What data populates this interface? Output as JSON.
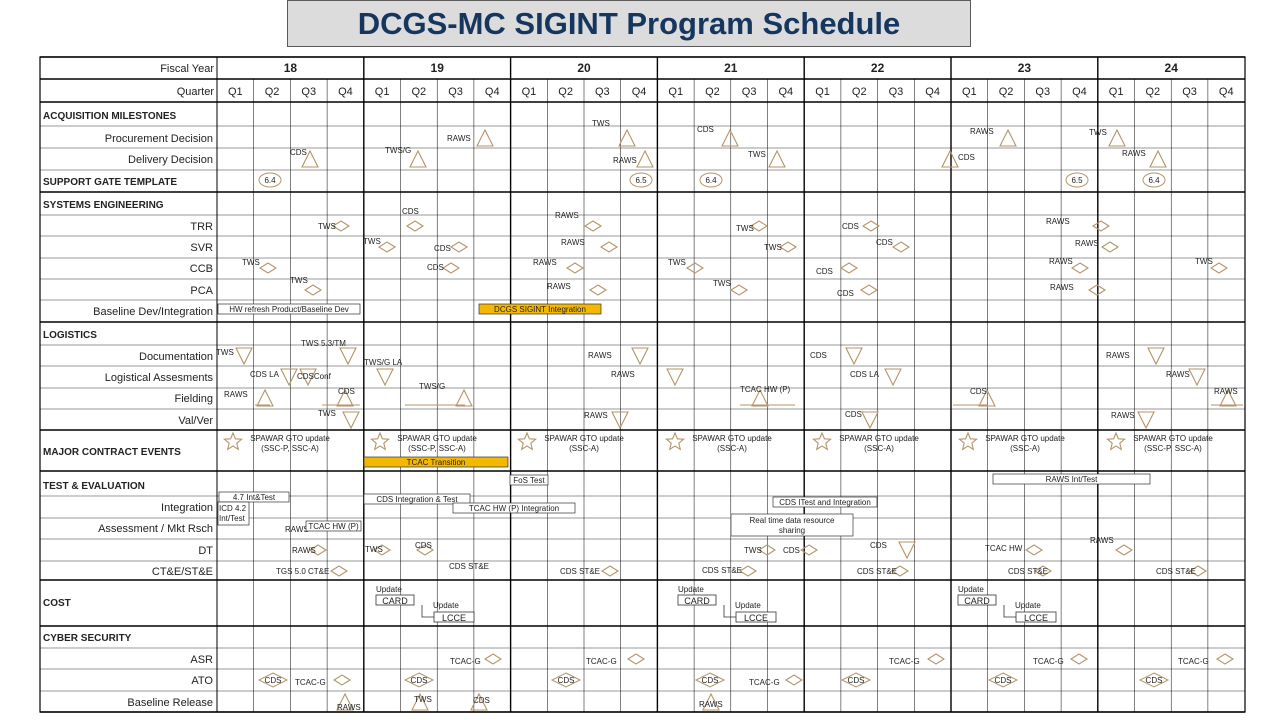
{
  "title": "DCGS-MC SIGINT Program Schedule",
  "colors": {
    "title_bg": "#dcdcdc",
    "title_text": "#14365f",
    "milestone": "#b49469",
    "bar_fill": "#f5b800",
    "grid": "#000000"
  },
  "header": {
    "fiscal_year_label": "Fiscal Year",
    "quarter_label": "Quarter"
  },
  "years": [
    "18",
    "19",
    "20",
    "21",
    "22",
    "23",
    "24"
  ],
  "quarters": [
    "Q1",
    "Q2",
    "Q3",
    "Q4"
  ],
  "sections": [
    {
      "title": "ACQUISITION MILESTONES",
      "rows": [
        "Procurement Decision",
        "Delivery Decision"
      ]
    },
    {
      "title": "SUPPORT GATE TEMPLATE",
      "rows": []
    },
    {
      "title": "SYSTEMS ENGINEERING",
      "rows": [
        "TRR",
        "SVR",
        "CCB",
        "PCA",
        "Baseline Dev/Integration"
      ]
    },
    {
      "title": "LOGISTICS",
      "rows": [
        "Documentation",
        "Logistical Assesments",
        "Fielding",
        "Val/Ver"
      ]
    },
    {
      "title": "MAJOR CONTRACT EVENTS",
      "rows": []
    },
    {
      "title": "TEST & EVALUATION",
      "rows": [
        "Integration",
        "Assessment / Mkt Rsch",
        "DT",
        "CT&E/ST&E"
      ]
    },
    {
      "title": "COST",
      "rows": []
    },
    {
      "title": "CYBER SECURITY",
      "rows": [
        "ASR",
        "ATO",
        "Baseline Release"
      ]
    }
  ],
  "gates": [
    "6.4",
    "6.5",
    "6.4",
    "6.5",
    "6.4"
  ],
  "bars": [
    {
      "label": "HW refresh Product/Baseline Dev",
      "fill": false
    },
    {
      "label": "DCGS SIGINT Integration",
      "fill": true
    },
    {
      "label": "TCAC Transition",
      "fill": true
    },
    {
      "label": "4.7 Int&Test",
      "fill": false
    },
    {
      "label": "CDS Integration & Test",
      "fill": false
    },
    {
      "label": "TCAC HW (P) Integration",
      "fill": false
    },
    {
      "label": "FoS Test",
      "fill": false
    },
    {
      "label": "CDS ITest and Integration",
      "fill": false
    },
    {
      "label": "RAWS Int/Test",
      "fill": false
    },
    {
      "label": "TCAC HW (P)",
      "fill": false
    }
  ],
  "boxes": [
    {
      "lines": [
        "ICD 4.2",
        "Int/Test"
      ]
    },
    {
      "lines": [
        "Real time data resource",
        "sharing"
      ]
    }
  ],
  "contract_events": [
    {
      "lines": [
        "SPAWAR GTO update",
        "(SSC-P, SSC-A)"
      ]
    },
    {
      "lines": [
        "SPAWAR GTO update",
        "(SSC-P, SSC-A)"
      ]
    },
    {
      "lines": [
        "SPAWAR GTO update",
        "(SSC-A)"
      ]
    },
    {
      "lines": [
        "SPAWAR GTO update",
        "(SSC-A)"
      ]
    },
    {
      "lines": [
        "SPAWAR GTO update",
        "(SSC-A)"
      ]
    },
    {
      "lines": [
        "SPAWAR GTO update",
        "(SSC-A)"
      ]
    },
    {
      "lines": [
        "SPAWAR GTO update",
        "(SSC-P, SSC-A)"
      ]
    }
  ],
  "cost_groups": [
    {
      "update1": "Update",
      "card": "CARD",
      "update2": "Update",
      "lcce": "LCCE"
    },
    {
      "update1": "Update",
      "card": "CARD",
      "update2": "Update",
      "lcce": "LCCE"
    },
    {
      "update1": "Update",
      "card": "CARD",
      "update2": "Update",
      "lcce": "LCCE"
    }
  ],
  "milestones": [
    {
      "row": "Procurement Decision",
      "shape": "triangle-up",
      "label": "RAWS"
    },
    {
      "row": "Procurement Decision",
      "shape": "triangle-up",
      "label": "TWS"
    },
    {
      "row": "Procurement Decision",
      "shape": "triangle-up",
      "label": "CDS"
    },
    {
      "row": "Procurement Decision",
      "shape": "triangle-up",
      "label": "RAWS"
    },
    {
      "row": "Procurement Decision",
      "shape": "triangle-up",
      "label": "TWS"
    },
    {
      "row": "Delivery Decision",
      "shape": "triangle-up",
      "label": "CDS"
    },
    {
      "row": "Delivery Decision",
      "shape": "triangle-up",
      "label": "TWS/G"
    },
    {
      "row": "Delivery Decision",
      "shape": "triangle-up",
      "label": "RAWS"
    },
    {
      "row": "Delivery Decision",
      "shape": "triangle-up",
      "label": "TWS"
    },
    {
      "row": "Delivery Decision",
      "shape": "triangle-up",
      "label": "CDS"
    },
    {
      "row": "Delivery Decision",
      "shape": "triangle-up",
      "label": "RAWS"
    },
    {
      "row": "TRR",
      "shape": "diamond",
      "label": "TWS"
    },
    {
      "row": "TRR",
      "shape": "diamond",
      "label": "CDS"
    },
    {
      "row": "TRR",
      "shape": "diamond",
      "label": "RAWS"
    },
    {
      "row": "TRR",
      "shape": "diamond",
      "label": "TWS"
    },
    {
      "row": "TRR",
      "shape": "diamond",
      "label": "CDS"
    },
    {
      "row": "TRR",
      "shape": "diamond",
      "label": "RAWS"
    },
    {
      "row": "SVR",
      "shape": "diamond",
      "label": "TWS"
    },
    {
      "row": "SVR",
      "shape": "diamond",
      "label": "CDS"
    },
    {
      "row": "SVR",
      "shape": "diamond",
      "label": "RAWS"
    },
    {
      "row": "SVR",
      "shape": "diamond",
      "label": "TWS"
    },
    {
      "row": "SVR",
      "shape": "diamond",
      "label": "CDS"
    },
    {
      "row": "SVR",
      "shape": "diamond",
      "label": "RAWS"
    },
    {
      "row": "CCB",
      "shape": "diamond",
      "label": "TWS"
    },
    {
      "row": "CCB",
      "shape": "diamond",
      "label": "CDS"
    },
    {
      "row": "CCB",
      "shape": "diamond",
      "label": "RAWS"
    },
    {
      "row": "CCB",
      "shape": "diamond",
      "label": "TWS"
    },
    {
      "row": "CCB",
      "shape": "diamond",
      "label": "CDS"
    },
    {
      "row": "CCB",
      "shape": "diamond",
      "label": "RAWS"
    },
    {
      "row": "CCB",
      "shape": "diamond",
      "label": "TWS"
    },
    {
      "row": "PCA",
      "shape": "diamond",
      "label": "TWS"
    },
    {
      "row": "PCA",
      "shape": "diamond",
      "label": "RAWS"
    },
    {
      "row": "PCA",
      "shape": "diamond",
      "label": "TWS"
    },
    {
      "row": "PCA",
      "shape": "diamond",
      "label": "CDS"
    },
    {
      "row": "PCA",
      "shape": "diamond",
      "label": "RAWS"
    },
    {
      "row": "Documentation",
      "shape": "triangle-down",
      "label": "TWS"
    },
    {
      "row": "Documentation",
      "shape": "triangle-down",
      "label": "TWS 5.3/TM"
    },
    {
      "row": "Documentation",
      "shape": "triangle-down",
      "label": "RAWS"
    },
    {
      "row": "Documentation",
      "shape": "triangle-down",
      "label": "CDS"
    },
    {
      "row": "Documentation",
      "shape": "triangle-down",
      "label": "RAWS"
    },
    {
      "row": "Logistical Assesments",
      "shape": "triangle-down",
      "label": "CDS LA"
    },
    {
      "row": "Logistical Assesments",
      "shape": "triangle-down",
      "label": "CDSConf"
    },
    {
      "row": "Logistical Assesments",
      "shape": "triangle-down",
      "label": "TWS/G LA"
    },
    {
      "row": "Logistical Assesments",
      "shape": "triangle-down",
      "label": "RAWS"
    },
    {
      "row": "Logistical Assesments",
      "shape": "triangle-down",
      "label": "CDS LA"
    },
    {
      "row": "Logistical Assesments",
      "shape": "triangle-down",
      "label": "RAWS"
    },
    {
      "row": "Fielding",
      "shape": "triangle-up",
      "label": "RAWS"
    },
    {
      "row": "Fielding",
      "shape": "triangle-up",
      "label": "CDS"
    },
    {
      "row": "Fielding",
      "shape": "triangle-up",
      "label": "TWS/G"
    },
    {
      "row": "Fielding",
      "shape": "triangle-up",
      "label": "TCAC HW (P)"
    },
    {
      "row": "Fielding",
      "shape": "triangle-up",
      "label": "CDS"
    },
    {
      "row": "Fielding",
      "shape": "triangle-up",
      "label": "RAWS"
    },
    {
      "row": "Val/Ver",
      "shape": "triangle-down",
      "label": "TWS"
    },
    {
      "row": "Val/Ver",
      "shape": "triangle-down",
      "label": "RAWS"
    },
    {
      "row": "Val/Ver",
      "shape": "triangle-down",
      "label": "CDS"
    },
    {
      "row": "Val/Ver",
      "shape": "triangle-down",
      "label": "RAWS"
    },
    {
      "row": "Assessment / Mkt Rsch",
      "shape": "text",
      "label": "RAWS"
    },
    {
      "row": "DT",
      "shape": "diamond",
      "label": "RAWS"
    },
    {
      "row": "DT",
      "shape": "diamond",
      "label": "TWS"
    },
    {
      "row": "DT",
      "shape": "diamond",
      "label": "CDS"
    },
    {
      "row": "DT",
      "shape": "diamond",
      "label": "TWS"
    },
    {
      "row": "DT",
      "shape": "diamond",
      "label": "CDS"
    },
    {
      "row": "DT",
      "shape": "triangle-down",
      "label": "CDS"
    },
    {
      "row": "DT",
      "shape": "diamond",
      "label": "TCAC HW"
    },
    {
      "row": "DT",
      "shape": "diamond",
      "label": "RAWS"
    },
    {
      "row": "CT&E/ST&E",
      "shape": "diamond",
      "label": "TGS 5.0 CT&E"
    },
    {
      "row": "CT&E/ST&E",
      "shape": "text",
      "label": "CDS ST&E"
    },
    {
      "row": "CT&E/ST&E",
      "shape": "diamond",
      "label": "CDS ST&E"
    },
    {
      "row": "CT&E/ST&E",
      "shape": "diamond",
      "label": "CDS ST&E"
    },
    {
      "row": "CT&E/ST&E",
      "shape": "diamond",
      "label": "CDS ST&E"
    },
    {
      "row": "CT&E/ST&E",
      "shape": "diamond",
      "label": "CDS ST&E"
    },
    {
      "row": "CT&E/ST&E",
      "shape": "diamond",
      "label": "CDS ST&E"
    },
    {
      "row": "ASR",
      "shape": "diamond",
      "label": "TCAC-G"
    },
    {
      "row": "ASR",
      "shape": "diamond",
      "label": "TCAC-G"
    },
    {
      "row": "ASR",
      "shape": "diamond",
      "label": "TCAC-G"
    },
    {
      "row": "ASR",
      "shape": "diamond",
      "label": "TCAC-G"
    },
    {
      "row": "ASR",
      "shape": "diamond",
      "label": "TCAC-G"
    },
    {
      "row": "ATO",
      "shape": "diamond-label",
      "label": "CDS"
    },
    {
      "row": "ATO",
      "shape": "diamond",
      "label": "TCAC-G"
    },
    {
      "row": "ATO",
      "shape": "diamond-label",
      "label": "CDS"
    },
    {
      "row": "ATO",
      "shape": "diamond-label",
      "label": "CDS"
    },
    {
      "row": "ATO",
      "shape": "diamond-label",
      "label": "CDS"
    },
    {
      "row": "ATO",
      "shape": "diamond",
      "label": "TCAC-G"
    },
    {
      "row": "ATO",
      "shape": "diamond-label",
      "label": "CDS"
    },
    {
      "row": "ATO",
      "shape": "diamond-label",
      "label": "CDS"
    },
    {
      "row": "ATO",
      "shape": "diamond-label",
      "label": "CDS"
    },
    {
      "row": "Baseline Release",
      "shape": "triangle-up",
      "label": "RAWS"
    },
    {
      "row": "Baseline Release",
      "shape": "triangle-up",
      "label": "TWS"
    },
    {
      "row": "Baseline Release",
      "shape": "triangle-up",
      "label": "CDS"
    },
    {
      "row": "Baseline Release",
      "shape": "triangle-up",
      "label": "RAWS"
    }
  ]
}
